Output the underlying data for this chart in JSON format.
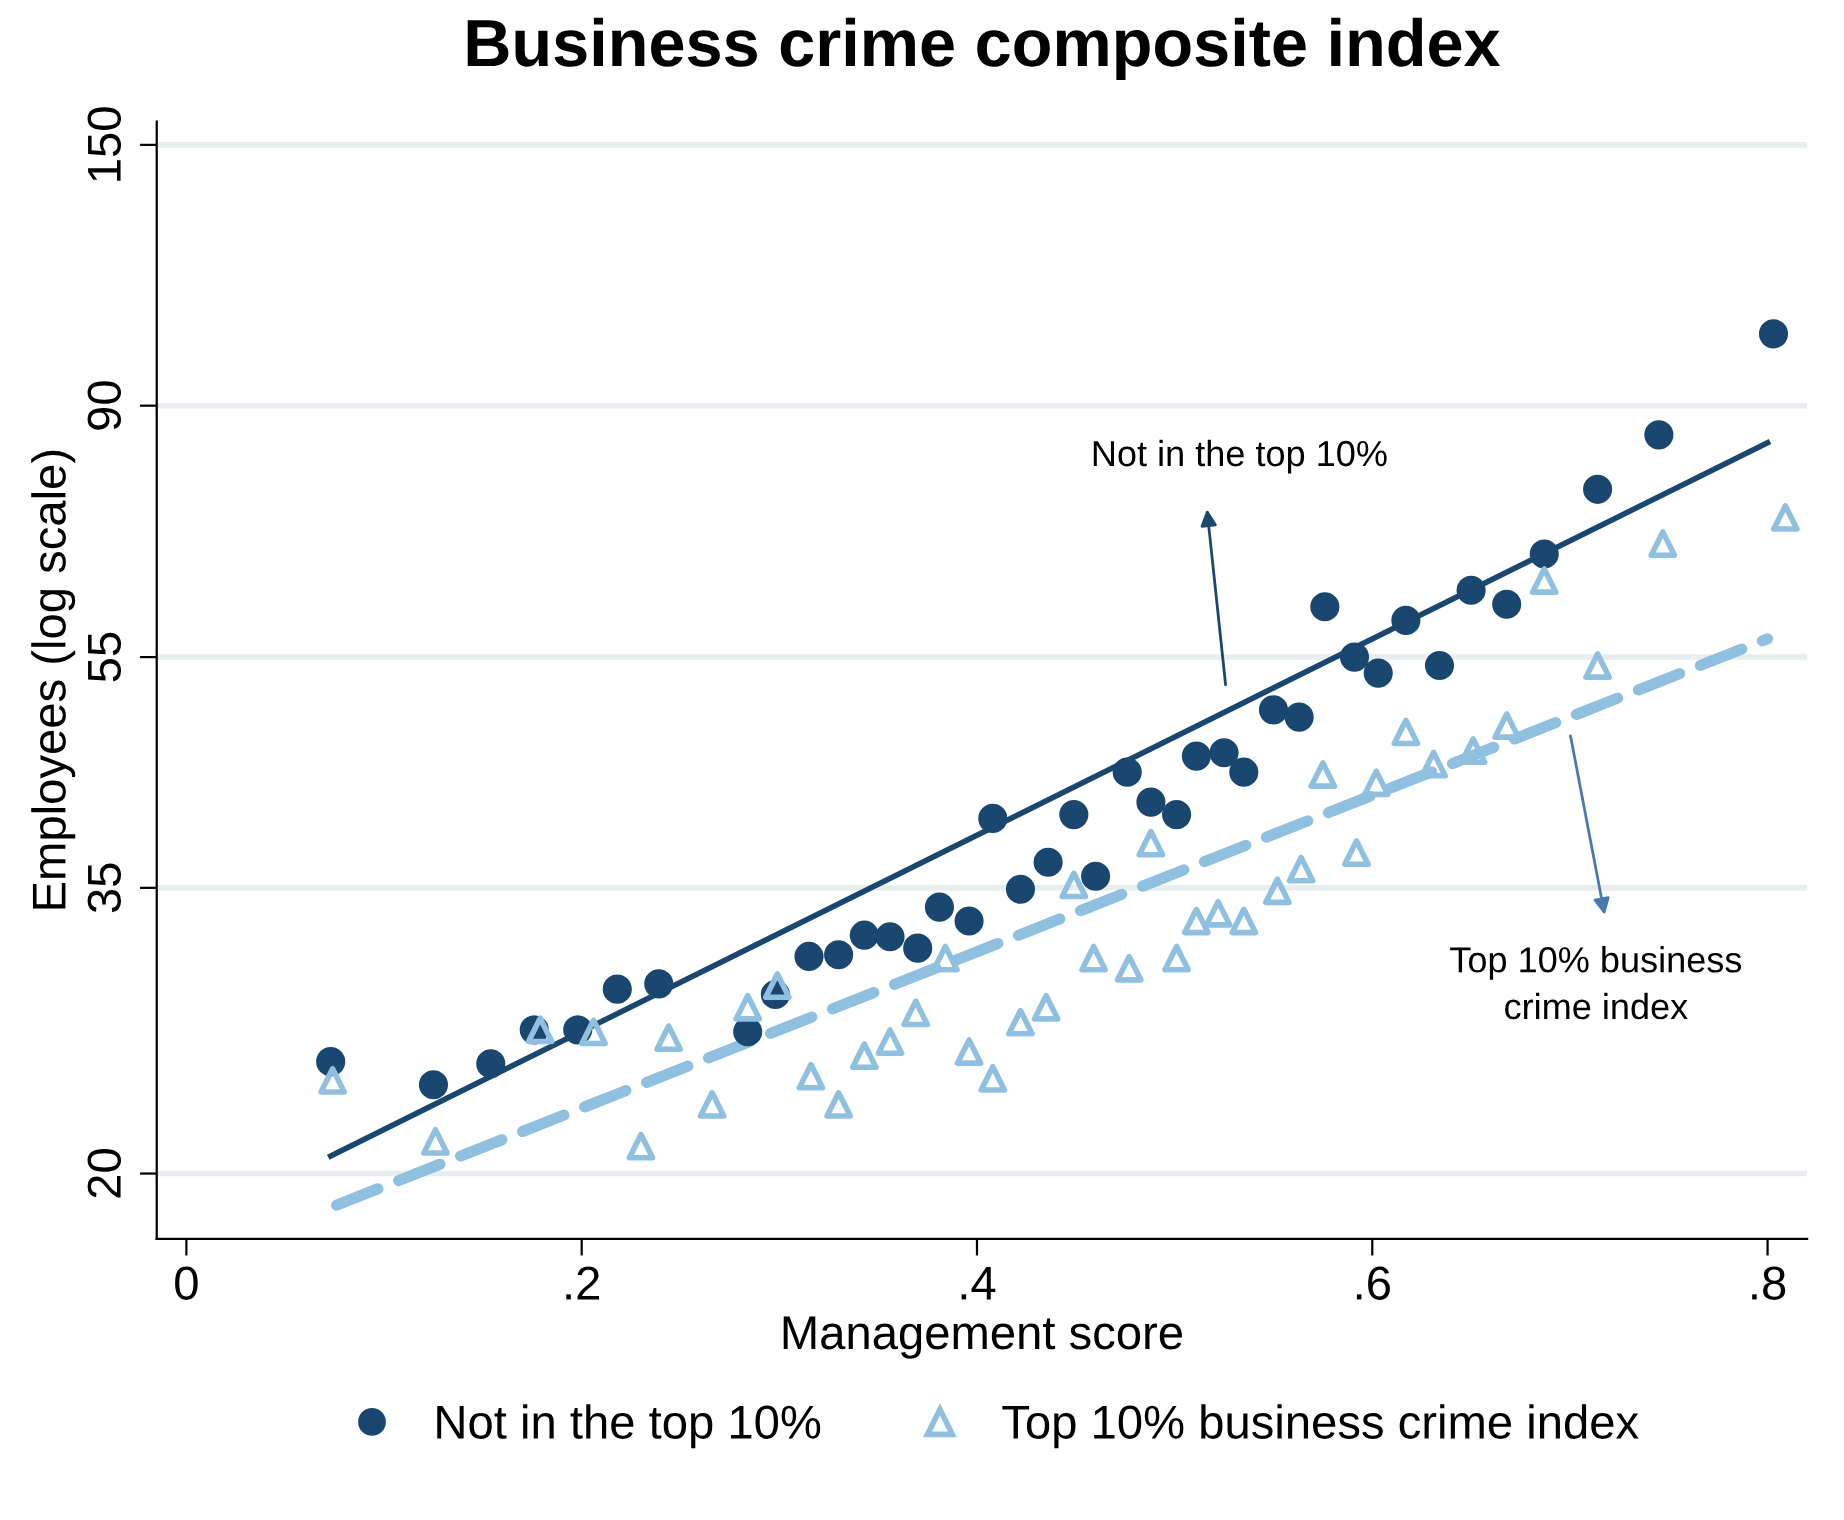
{
  "chart_data": {
    "type": "scatter",
    "title": "Business crime composite index",
    "xlabel": "Management score",
    "ylabel": "Employees (log scale)",
    "log": "y",
    "grid": "y",
    "legend": "bottom",
    "xlim": [
      -0.015,
      0.82
    ],
    "ylim": [
      17.6,
      157
    ],
    "xticks": [
      {
        "value": 0,
        "label": "0"
      },
      {
        "value": 0.2,
        "label": ".2"
      },
      {
        "value": 0.4,
        "label": ".4"
      },
      {
        "value": 0.6,
        "label": ".6"
      },
      {
        "value": 0.8,
        "label": ".8"
      }
    ],
    "yticks": [
      20,
      35,
      55,
      90,
      150
    ],
    "series": [
      {
        "name": "Not in the top 10%",
        "marker": "circle",
        "color": "#1a476f",
        "x": [
          0.073,
          0.125,
          0.154,
          0.176,
          0.198,
          0.218,
          0.239,
          0.284,
          0.298,
          0.315,
          0.33,
          0.343,
          0.356,
          0.37,
          0.381,
          0.396,
          0.408,
          0.422,
          0.436,
          0.449,
          0.46,
          0.476,
          0.488,
          0.501,
          0.511,
          0.525,
          0.535,
          0.55,
          0.563,
          0.576,
          0.591,
          0.603,
          0.617,
          0.634,
          0.65,
          0.668,
          0.687,
          0.714,
          0.745,
          0.803
        ],
        "values": [
          24.9,
          23.8,
          24.8,
          26.5,
          26.5,
          28.7,
          29.0,
          26.4,
          28.4,
          30.6,
          30.7,
          31.9,
          31.8,
          31.1,
          33.7,
          32.8,
          40.1,
          34.9,
          36.8,
          40.4,
          35.8,
          43.9,
          41.4,
          40.4,
          45.3,
          45.6,
          43.9,
          49.6,
          48.9,
          60.7,
          55.0,
          53.3,
          59.1,
          54.1,
          62.7,
          61.0,
          67.3,
          76.4,
          85.0,
          103.6
        ]
      },
      {
        "name": "Top 10% business crime index",
        "marker": "triangle",
        "color": "#90c0e0",
        "x": [
          0.074,
          0.126,
          0.179,
          0.206,
          0.23,
          0.244,
          0.266,
          0.284,
          0.299,
          0.316,
          0.33,
          0.343,
          0.356,
          0.369,
          0.384,
          0.396,
          0.408,
          0.422,
          0.435,
          0.449,
          0.459,
          0.477,
          0.488,
          0.501,
          0.511,
          0.522,
          0.535,
          0.552,
          0.564,
          0.575,
          0.592,
          0.602,
          0.617,
          0.631,
          0.651,
          0.668,
          0.687,
          0.714,
          0.747,
          0.809
        ],
        "values": [
          24.0,
          21.3,
          26.5,
          26.4,
          21.1,
          26.1,
          22.9,
          27.7,
          28.9,
          24.2,
          22.9,
          25.2,
          25.9,
          27.4,
          30.5,
          25.4,
          24.1,
          26.9,
          27.7,
          35.2,
          30.5,
          29.9,
          38.2,
          30.5,
          32.8,
          33.3,
          32.8,
          34.8,
          36.3,
          43.7,
          37.5,
          43.0,
          47.5,
          44.6,
          45.8,
          48.1,
          63.9,
          54.1,
          68.7,
          72.3
        ]
      },
      {
        "type": "line",
        "line_style": "solid",
        "color": "#1a476f",
        "x": [
          0.073,
          0.8
        ],
        "values": [
          20.7,
          83.7
        ]
      },
      {
        "type": "line",
        "line_style": "dashed",
        "color": "#90c0e0",
        "x": [
          0.076,
          0.8
        ],
        "values": [
          18.8,
          57.0
        ]
      }
    ],
    "annotations": [
      "Not in the top 10%",
      "Top 10% business\ncrime index"
    ]
  }
}
